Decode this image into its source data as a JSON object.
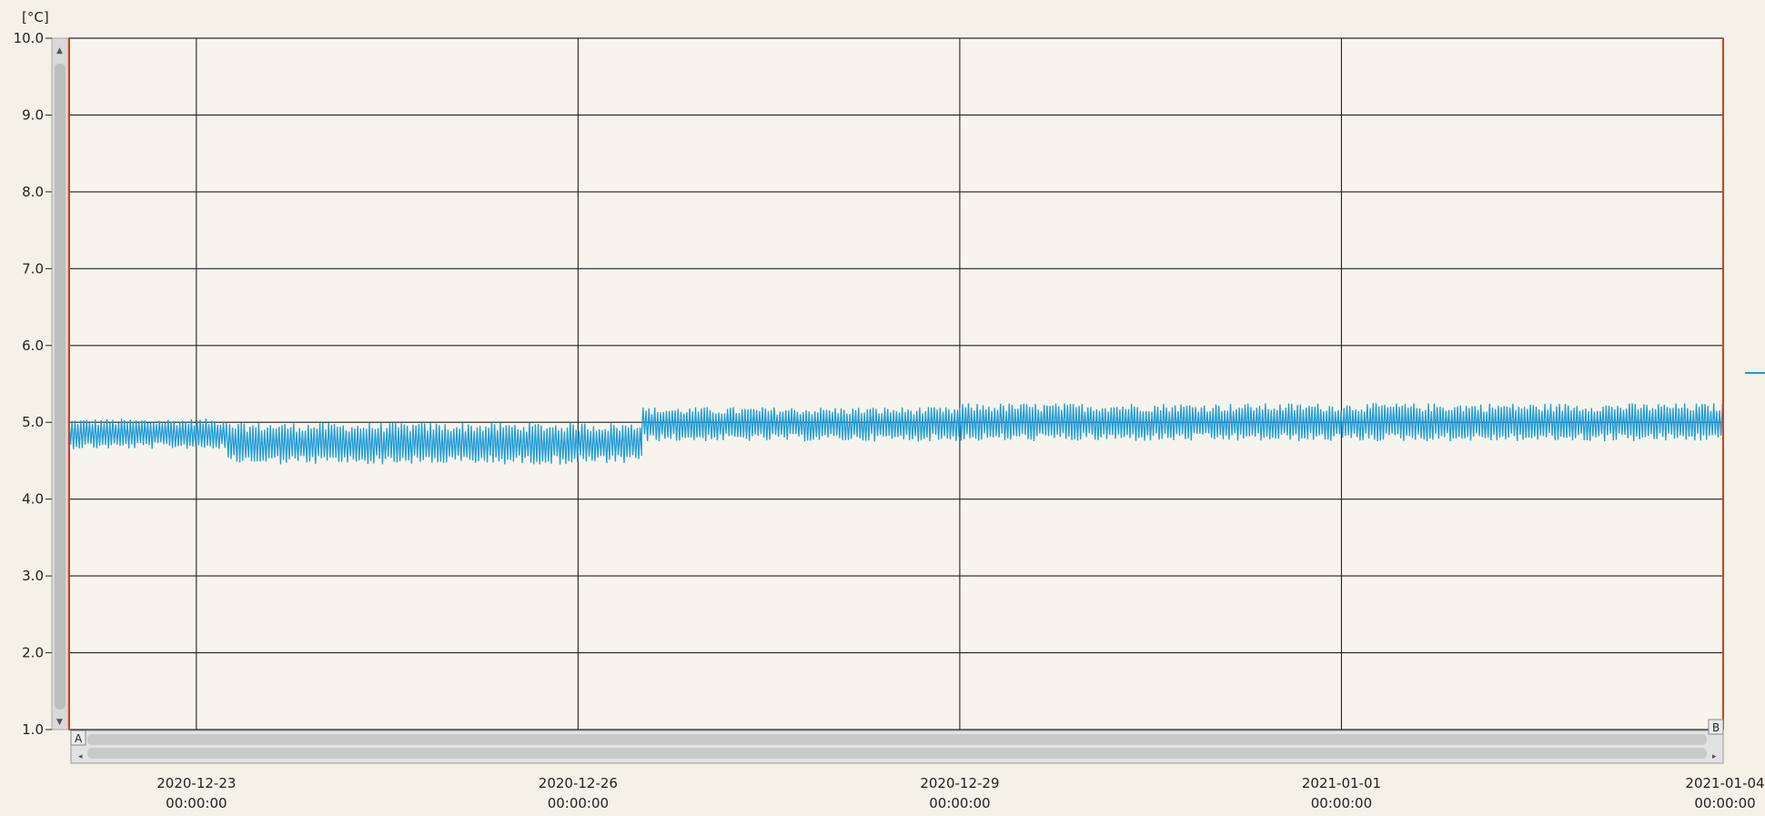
{
  "chart_data": {
    "type": "line",
    "unit_label": "[°C]",
    "ylim": [
      1.0,
      10.0
    ],
    "y_ticks": [
      "10.0",
      "9.0",
      "8.0",
      "7.0",
      "6.0",
      "5.0",
      "4.0",
      "3.0",
      "2.0",
      "1.0"
    ],
    "x_range": [
      "2020-12-22T00:00:00",
      "2021-01-04T00:00:00"
    ],
    "x_ticks": [
      {
        "date": "2020-12-23",
        "time": "00:00:00"
      },
      {
        "date": "2020-12-26",
        "time": "00:00:00"
      },
      {
        "date": "2020-12-29",
        "time": "00:00:00"
      },
      {
        "date": "2021-01-01",
        "time": "00:00:00"
      },
      {
        "date": "2021-01-04",
        "time": "00:00:00"
      }
    ],
    "grid": true,
    "series": [
      {
        "color": "#1e9bd7",
        "segments": [
          {
            "from": "2020-12-22T00:00:00",
            "to": "2020-12-23T06:00:00",
            "min": 4.65,
            "max": 5.05
          },
          {
            "from": "2020-12-23T06:00:00",
            "to": "2020-12-26T12:00:00",
            "min": 4.45,
            "max": 5.0
          },
          {
            "from": "2020-12-26T12:00:00",
            "to": "2020-12-29T00:00:00",
            "min": 4.75,
            "max": 5.2
          },
          {
            "from": "2020-12-29T00:00:00",
            "to": "2021-01-04T00:00:00",
            "min": 4.75,
            "max": 5.25
          }
        ]
      }
    ],
    "cursor_a_label": "A",
    "cursor_b_label": "B",
    "cursor_color": "#d04020"
  }
}
